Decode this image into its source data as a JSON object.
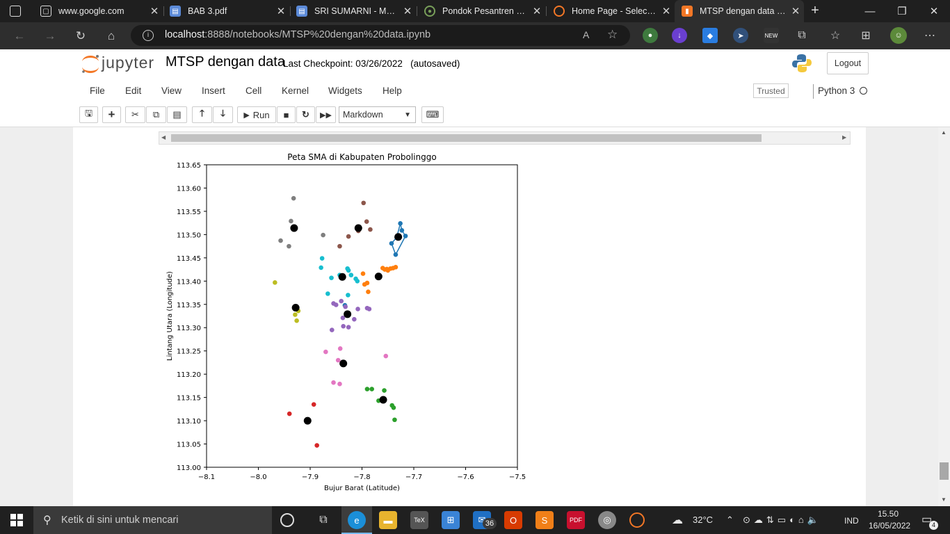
{
  "browser": {
    "tabs": [
      {
        "title": "www.google.com",
        "icon": "google-icon"
      },
      {
        "title": "BAB 3.pdf",
        "icon": "document-icon"
      },
      {
        "title": "SRI SUMARNI - MODEL",
        "icon": "document-icon"
      },
      {
        "title": "Pondok Pesantren Nur",
        "icon": "site-icon"
      },
      {
        "title": "Home Page - Select or",
        "icon": "jupyter-icon"
      },
      {
        "title": "MTSP dengan data - Ju",
        "icon": "notebook-icon"
      }
    ],
    "url_host": "localhost",
    "url_rest": ":8888/notebooks/MTSP%20dengan%20data.ipynb"
  },
  "jupyter": {
    "logo_text": "jupyter",
    "notebook_name": "MTSP dengan data",
    "checkpoint": "Last Checkpoint: 03/26/2022",
    "autosaved": "(autosaved)",
    "logout": "Logout",
    "menus": [
      "File",
      "Edit",
      "View",
      "Insert",
      "Cell",
      "Kernel",
      "Widgets",
      "Help"
    ],
    "trusted": "Trusted",
    "kernel": "Python 3",
    "run_label": "Run",
    "cell_type": "Markdown"
  },
  "chart_data": {
    "type": "scatter",
    "title": "Peta SMA di Kabupaten Probolinggo",
    "xlabel": "Bujur Barat (Latitude)",
    "ylabel": "Lintang Utara (Longitude)",
    "xlim": [
      -8.1,
      -7.5
    ],
    "ylim": [
      113.0,
      113.65
    ],
    "xticks": [
      "−8.1",
      "−8.0",
      "−7.9",
      "−7.8",
      "−7.7",
      "−7.6",
      "−7.5"
    ],
    "yticks": [
      "113.00",
      "113.05",
      "113.10",
      "113.15",
      "113.20",
      "113.25",
      "113.30",
      "113.35",
      "113.40",
      "113.45",
      "113.50",
      "113.55",
      "113.60",
      "113.65"
    ],
    "grid": false,
    "series": [
      {
        "color": "#1f77b4",
        "points": [
          [
            -7.726,
            113.524
          ],
          [
            -7.723,
            113.509
          ],
          [
            -7.716,
            113.497
          ],
          [
            -7.733,
            113.494
          ],
          [
            -7.743,
            113.481
          ],
          [
            -7.735,
            113.457
          ],
          [
            -7.833,
            113.348
          ]
        ],
        "route": [
          [
            -7.716,
            113.497
          ],
          [
            -7.723,
            113.509
          ],
          [
            -7.726,
            113.524
          ],
          [
            -7.733,
            113.494
          ],
          [
            -7.743,
            113.481
          ],
          [
            -7.735,
            113.457
          ],
          [
            -7.716,
            113.497
          ]
        ]
      },
      {
        "color": "#ff7f0e",
        "points": [
          [
            -7.735,
            113.43
          ],
          [
            -7.74,
            113.428
          ],
          [
            -7.745,
            113.427
          ],
          [
            -7.75,
            113.423
          ],
          [
            -7.752,
            113.426
          ],
          [
            -7.76,
            113.428
          ],
          [
            -7.756,
            113.425
          ],
          [
            -7.798,
            113.416
          ],
          [
            -7.795,
            113.393
          ],
          [
            -7.79,
            113.396
          ],
          [
            -7.788,
            113.377
          ],
          [
            -7.768,
            113.408
          ]
        ]
      },
      {
        "color": "#2ca02c",
        "points": [
          [
            -7.79,
            113.168
          ],
          [
            -7.781,
            113.168
          ],
          [
            -7.757,
            113.165
          ],
          [
            -7.768,
            113.143
          ],
          [
            -7.742,
            113.133
          ],
          [
            -7.739,
            113.128
          ],
          [
            -7.737,
            113.102
          ]
        ]
      },
      {
        "color": "#d62728",
        "points": [
          [
            -7.94,
            113.115
          ],
          [
            -7.893,
            113.135
          ],
          [
            -7.887,
            113.047
          ]
        ]
      },
      {
        "color": "#9467bd",
        "points": [
          [
            -7.855,
            113.352
          ],
          [
            -7.85,
            113.349
          ],
          [
            -7.84,
            113.357
          ],
          [
            -7.832,
            113.345
          ],
          [
            -7.808,
            113.34
          ],
          [
            -7.79,
            113.342
          ],
          [
            -7.786,
            113.34
          ],
          [
            -7.837,
            113.321
          ],
          [
            -7.815,
            113.318
          ],
          [
            -7.836,
            113.303
          ],
          [
            -7.826,
            113.301
          ],
          [
            -7.858,
            113.295
          ]
        ]
      },
      {
        "color": "#8c564b",
        "points": [
          [
            -7.797,
            113.568
          ],
          [
            -7.791,
            113.528
          ],
          [
            -7.784,
            113.511
          ],
          [
            -7.807,
            113.508
          ],
          [
            -7.826,
            113.496
          ],
          [
            -7.843,
            113.475
          ]
        ]
      },
      {
        "color": "#e377c2",
        "points": [
          [
            -7.842,
            113.255
          ],
          [
            -7.87,
            113.248
          ],
          [
            -7.846,
            113.23
          ],
          [
            -7.754,
            113.239
          ],
          [
            -7.855,
            113.182
          ],
          [
            -7.843,
            113.179
          ]
        ]
      },
      {
        "color": "#7f7f7f",
        "points": [
          [
            -7.932,
            113.578
          ],
          [
            -7.937,
            113.529
          ],
          [
            -7.957,
            113.487
          ],
          [
            -7.941,
            113.475
          ],
          [
            -7.875,
            113.499
          ]
        ]
      },
      {
        "color": "#bcbd22",
        "points": [
          [
            -7.968,
            113.397
          ],
          [
            -7.923,
            113.336
          ],
          [
            -7.929,
            113.328
          ],
          [
            -7.926,
            113.315
          ]
        ]
      },
      {
        "color": "#17becf",
        "points": [
          [
            -7.877,
            113.449
          ],
          [
            -7.879,
            113.429
          ],
          [
            -7.843,
            113.413
          ],
          [
            -7.828,
            113.427
          ],
          [
            -7.826,
            113.423
          ],
          [
            -7.821,
            113.413
          ],
          [
            -7.859,
            113.407
          ],
          [
            -7.812,
            113.405
          ],
          [
            -7.809,
            113.4
          ],
          [
            -7.866,
            113.373
          ],
          [
            -7.827,
            113.37
          ]
        ]
      }
    ],
    "depots": [
      [
        -7.931,
        113.514
      ],
      [
        -7.807,
        113.514
      ],
      [
        -7.73,
        113.495
      ],
      [
        -7.838,
        113.409
      ],
      [
        -7.768,
        113.41
      ],
      [
        -7.928,
        113.343
      ],
      [
        -7.828,
        113.329
      ],
      [
        -7.836,
        113.223
      ],
      [
        -7.759,
        113.145
      ],
      [
        -7.905,
        113.1
      ]
    ]
  },
  "taskbar": {
    "search_placeholder": "Ketik di sini untuk mencari",
    "mail_badge": "36",
    "weather": "32°C",
    "language": "IND",
    "time": "15.50",
    "date": "16/05/2022",
    "notifications": "4"
  }
}
